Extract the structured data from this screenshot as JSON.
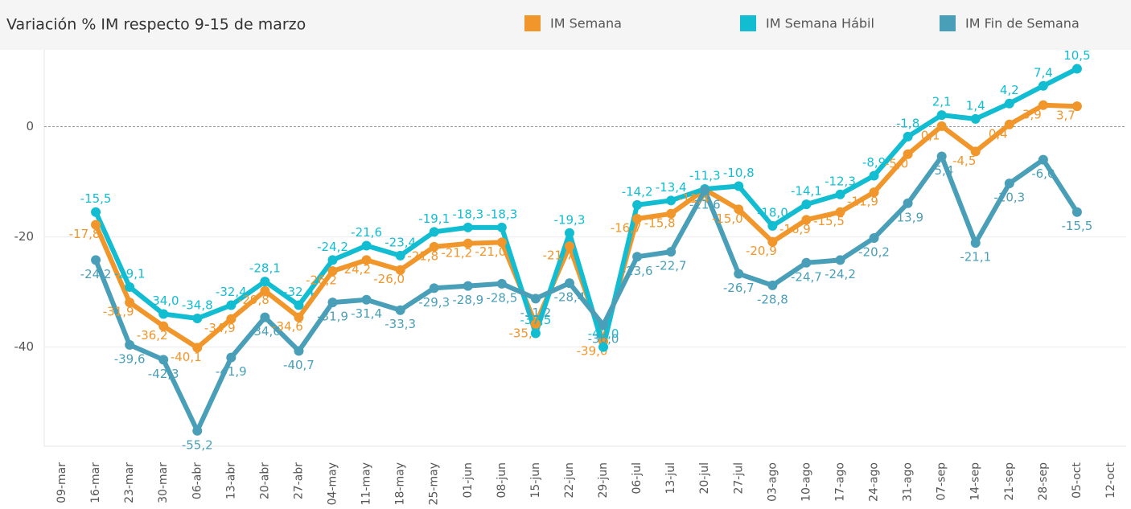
{
  "chart_data": {
    "type": "line",
    "title": "Variación % IM respecto 9-15 de marzo",
    "categories": [
      "09-mar",
      "16-mar",
      "23-mar",
      "30-mar",
      "06-abr",
      "13-abr",
      "20-abr",
      "27-abr",
      "04-may",
      "11-may",
      "18-may",
      "25-may",
      "01-jun",
      "08-jun",
      "15-jun",
      "22-jun",
      "29-jun",
      "06-jul",
      "13-jul",
      "20-jul",
      "27-jul",
      "03-ago",
      "10-ago",
      "17-ago",
      "24-ago",
      "31-ago",
      "07-sep",
      "14-sep",
      "21-sep",
      "28-sep",
      "05-oct",
      "12-oct"
    ],
    "series": [
      {
        "name": "IM Semana",
        "color": "#f0962a",
        "values": [
          null,
          -17.8,
          -31.9,
          -36.2,
          -40.1,
          -34.9,
          -29.8,
          -34.6,
          -26.2,
          -24.2,
          -26.0,
          -21.8,
          -21.2,
          -21.0,
          -35.8,
          -21.7,
          -39.0,
          -16.7,
          -15.8,
          -11.4,
          -15.0,
          -20.9,
          -16.9,
          -15.5,
          -11.9,
          -5.0,
          0.1,
          -4.5,
          0.4,
          3.9,
          3.7,
          null
        ],
        "value_labels": [
          null,
          "-17,8",
          "-31,9",
          "-36,2",
          "-40,1",
          "-34,9",
          "-29,8",
          "-34,6",
          "-26,2",
          "-24,2",
          "-26,0",
          "-21,8",
          "-21,2",
          "-21,0",
          "-35,8",
          "-21,7",
          "-39,0",
          "-16,7",
          "-15,8",
          "-11,4",
          "-15,0",
          "-20,9",
          "-16,9",
          "-15,5",
          "-11,9",
          "-5,0",
          "0,1",
          "-4,5",
          "0,4",
          "3,9",
          "3,7",
          null
        ]
      },
      {
        "name": "IM Semana Hábil",
        "color": "#12bdd2",
        "values": [
          null,
          -15.5,
          -29.1,
          -34.0,
          -34.8,
          -32.4,
          -28.1,
          -32.4,
          -24.2,
          -21.6,
          -23.4,
          -19.1,
          -18.3,
          -18.3,
          -37.5,
          -19.3,
          -40.0,
          -14.2,
          -13.4,
          -11.3,
          -10.8,
          -18.0,
          -14.1,
          -12.3,
          -8.9,
          -1.8,
          2.1,
          1.4,
          4.2,
          7.4,
          10.5,
          null
        ],
        "value_labels": [
          null,
          "-15,5",
          "-29,1",
          "-34,0",
          "-34,8",
          "-32,4",
          "-28,1",
          "-32,4",
          "-24,2",
          "-21,6",
          "-23,4",
          "-19,1",
          "-18,3",
          "-18,3",
          "-37,5",
          "-19,3",
          "-40,0",
          "-14,2",
          "-13,4",
          "-11,3",
          "-10,8",
          "-18,0",
          "-14,1",
          "-12,3",
          "-8,9",
          "-1,8",
          "2,1",
          "1,4",
          "4,2",
          "7,4",
          "10,5",
          null
        ]
      },
      {
        "name": "IM Fin de Semana",
        "color": "#4a9fb8",
        "values": [
          null,
          -24.2,
          -39.6,
          -42.3,
          -55.2,
          -41.9,
          -34.6,
          -40.7,
          -31.9,
          -31.4,
          -33.3,
          -29.3,
          -28.9,
          -28.5,
          -31.2,
          -28.4,
          -36.0,
          -23.6,
          -22.7,
          -11.6,
          -26.7,
          -28.8,
          -24.7,
          -24.2,
          -20.2,
          -13.9,
          -5.4,
          -21.1,
          -10.3,
          -6.0,
          -15.5,
          null
        ],
        "value_labels": [
          null,
          "-24,2",
          "-39,6",
          "-42,3",
          "-55,2",
          "-41,9",
          "-34,6",
          "-40,7",
          "-31,9",
          "-31,4",
          "-33,3",
          "-29,3",
          "-28,9",
          "-28,5",
          "-31,2",
          "-28,4",
          "-36,0",
          "-23,6",
          "-22,7",
          "-11,6",
          "-26,7",
          "-28,8",
          "-24,7",
          "-24,2",
          "-20,2",
          "-13,9",
          "-5,4",
          "-21,1",
          "-10,3",
          "-6,0",
          "-15,5",
          null
        ]
      }
    ],
    "ylim": [
      -58,
      13.5
    ],
    "yticks": [
      -40,
      -20,
      0
    ],
    "grid": true
  }
}
